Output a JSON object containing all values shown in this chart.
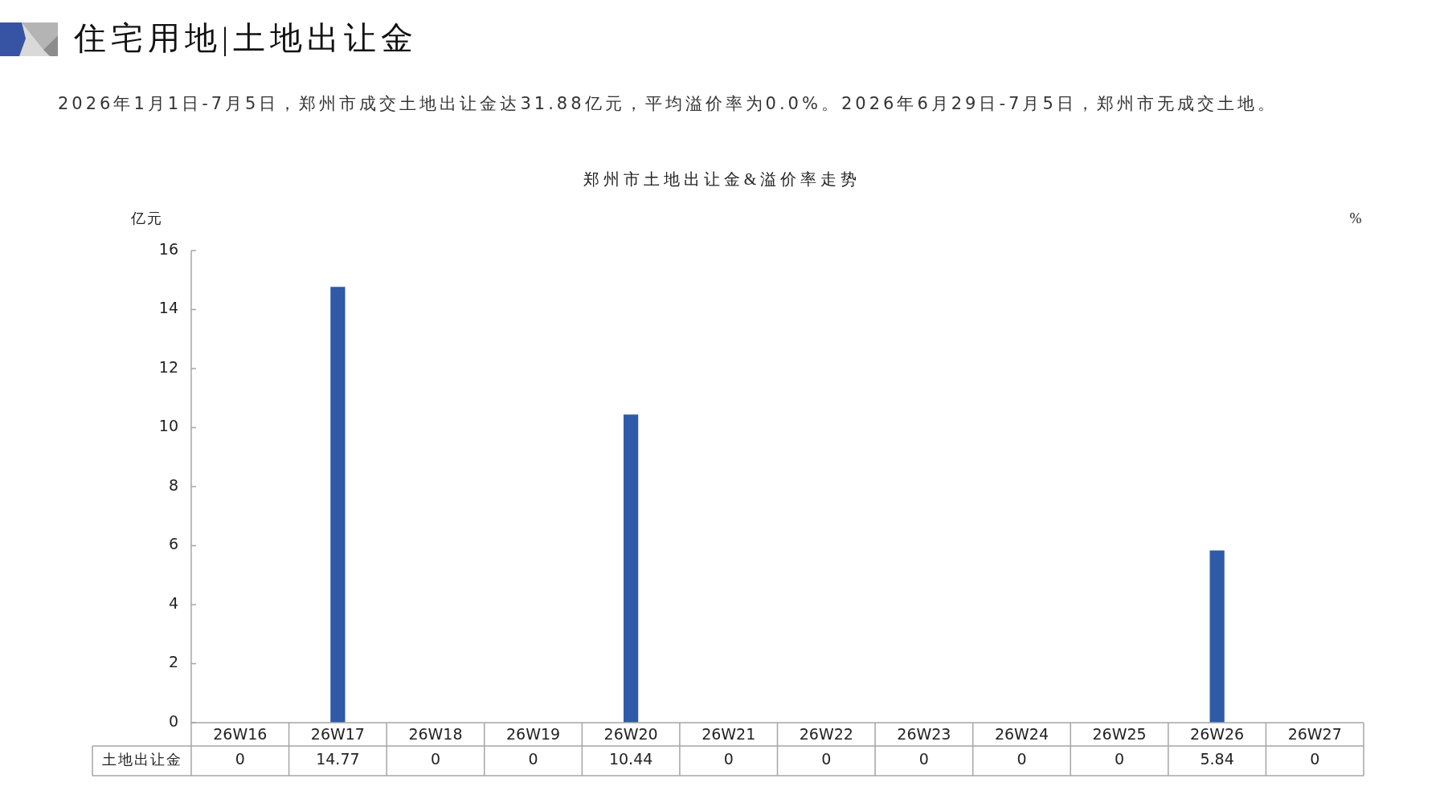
{
  "chart_data": {
    "type": "bar",
    "title": "住宅用地|土地出让金",
    "subtitle": "2026年1月1日-7月5日，郑州市成交土地出让金达31.88亿元，平均溢价率为0.0%。2026年6月29日-7月5日，郑州市无成交土地。",
    "annotations": [
      "郑州市土地出让金&溢价率走势"
    ],
    "ylabel": "亿元",
    "y2label": "%",
    "categories": [
      "26W16",
      "26W17",
      "26W18",
      "26W19",
      "26W20",
      "26W21",
      "26W22",
      "26W23",
      "26W24",
      "26W25",
      "26W26",
      "26W27"
    ],
    "series": [
      {
        "name": "土地出让金",
        "color": "#2e5aa7",
        "values": [
          0,
          14.77,
          0,
          0,
          10.44,
          0,
          0,
          0,
          0,
          0,
          5.84,
          0
        ]
      }
    ],
    "ylim": [
      0,
      16
    ],
    "yticks": [
      0,
      2,
      4,
      6,
      8,
      10,
      12,
      14,
      16
    ],
    "grid": false,
    "legend": false,
    "data_labels": true
  }
}
